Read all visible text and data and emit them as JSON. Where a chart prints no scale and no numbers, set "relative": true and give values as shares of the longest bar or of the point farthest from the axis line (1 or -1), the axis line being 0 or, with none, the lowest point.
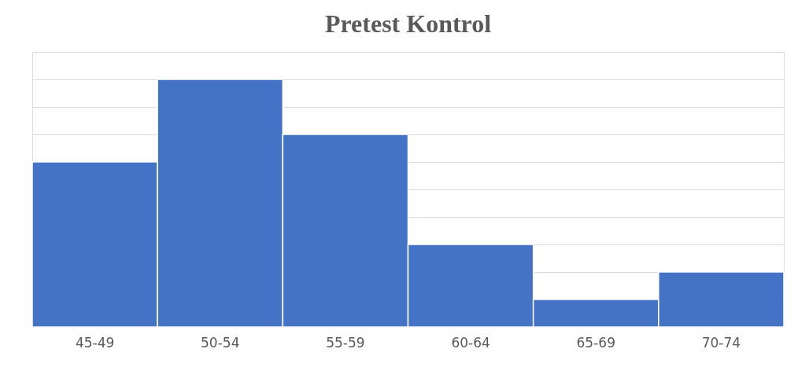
{
  "chart_data": {
    "type": "bar",
    "title": "Pretest Kontrol",
    "categories": [
      "45-49",
      "50-54",
      "55-59",
      "60-64",
      "65-69",
      "70-74"
    ],
    "values": [
      0.667,
      1,
      0.778,
      0.333,
      0.111,
      0.222
    ],
    "color": "#4472c4",
    "relative": true,
    "grid": "y"
  }
}
